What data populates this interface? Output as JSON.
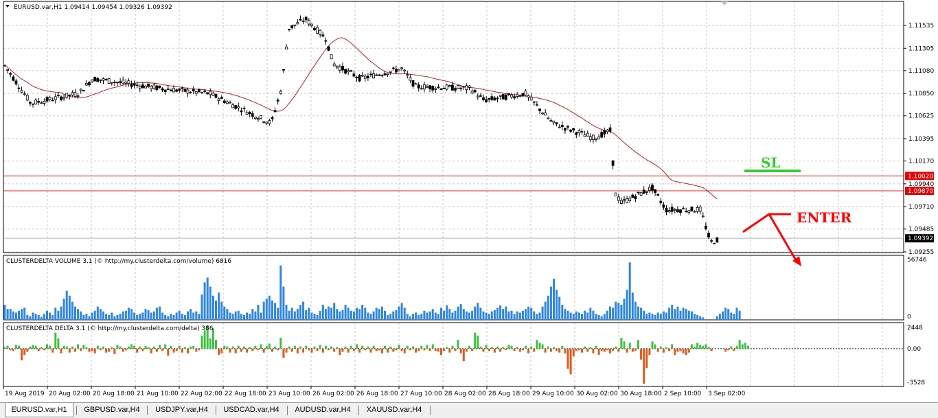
{
  "main_chart": {
    "title": "EURUSD.var,H1  1.09414 1.09454 1.09326 1.09392",
    "price_labels": [
      "1.11535",
      "1.11305",
      "1.11080",
      "1.10850",
      "1.10625",
      "1.10395",
      "1.10170",
      "1.09940",
      "1.09710",
      "1.09485",
      "1.09255"
    ],
    "tags": [
      {
        "text": "1.10020",
        "value": 1.1002,
        "color": "#e60000"
      },
      {
        "text": "1.09870",
        "value": 1.0987,
        "color": "#e60000"
      },
      {
        "text": "1.09392",
        "value": 1.09392,
        "color": "#000000"
      }
    ],
    "annotations": {
      "sl": "SL",
      "enter": "ENTER"
    },
    "colors": {
      "sl": "#33cc33",
      "enter": "#ff0000",
      "ma": "#b22222",
      "hline": "#e02020",
      "candle": "#000000"
    }
  },
  "volume_panel": {
    "title": "CLUSTERDELTA VOLUME 3.1 (© http://my.clusterdelta.com/volume) 6816",
    "labels": [
      "56746",
      "0"
    ],
    "color": "#2f86e0",
    "bars": [
      25,
      18,
      18,
      14,
      12,
      15,
      18,
      20,
      8,
      6,
      12,
      10,
      8,
      5,
      10,
      15,
      12,
      8,
      20,
      15,
      22,
      35,
      48,
      40,
      30,
      22,
      18,
      14,
      8,
      10,
      6,
      12,
      15,
      22,
      18,
      14,
      10,
      8,
      12,
      6,
      8,
      10,
      14,
      15,
      20,
      18,
      12,
      8,
      10,
      12,
      18,
      16,
      12,
      14,
      20,
      22,
      12,
      8,
      6,
      10,
      8,
      12,
      15,
      10,
      8,
      14,
      18,
      12,
      14,
      10,
      42,
      62,
      70,
      55,
      40,
      32,
      45,
      30,
      22,
      18,
      12,
      10,
      14,
      15,
      10,
      8,
      12,
      10,
      18,
      14,
      25,
      12,
      30,
      35,
      40,
      32,
      28,
      20,
      90,
      55,
      25,
      15,
      20,
      14,
      18,
      25,
      30,
      16,
      20,
      12,
      10,
      8,
      15,
      25,
      18,
      22,
      20,
      28,
      18,
      14,
      16,
      25,
      20,
      15,
      14,
      20,
      18,
      25,
      20,
      12,
      10,
      14,
      20,
      18,
      22,
      15,
      8,
      10,
      14,
      16,
      22,
      28,
      20,
      10,
      6,
      10,
      12,
      8,
      10,
      15,
      12,
      14,
      18,
      12,
      10,
      20,
      15,
      24,
      18,
      12,
      15,
      22,
      26,
      18,
      14,
      12,
      15,
      22,
      28,
      20,
      14,
      12,
      10,
      14,
      16,
      20,
      24,
      18,
      22,
      14,
      15,
      10,
      14,
      12,
      15,
      18,
      22,
      20,
      14,
      10,
      12,
      22,
      30,
      40,
      55,
      68,
      50,
      38,
      25,
      18,
      15,
      12,
      10,
      14,
      12,
      10,
      15,
      12,
      20,
      15,
      10,
      8,
      6,
      10,
      15,
      22,
      20,
      30,
      28,
      25,
      35,
      50,
      95,
      45,
      30,
      22,
      20,
      15,
      10,
      12,
      10,
      8,
      12,
      10,
      14,
      12,
      20,
      25,
      18,
      22,
      15,
      20,
      18,
      15,
      14,
      10,
      8,
      6,
      4,
      0,
      0,
      0,
      0,
      6,
      10,
      14,
      20,
      18,
      12,
      10,
      20,
      15
    ],
    "bar_max": 100
  },
  "delta_panel": {
    "title": "CLUSTERDELTA DELTA 3.1 (© http://my.clusterdelta.com/delta) 386",
    "labels": [
      "2448",
      "0.00",
      "-3528"
    ],
    "pos_color": "#3fbf3f",
    "neg_color": "#e05a20",
    "values": [
      2,
      4,
      -2,
      -3,
      5,
      4,
      -15,
      -8,
      -4,
      3,
      5,
      4,
      -3,
      2,
      -2,
      6,
      4,
      -5,
      22,
      14,
      -6,
      4,
      3,
      -5,
      3,
      -4,
      6,
      -3,
      5,
      2,
      -4,
      -3,
      -6,
      4,
      -2,
      3,
      -5,
      -4,
      2,
      -7,
      5,
      3,
      -4,
      -2,
      3,
      6,
      4,
      -5,
      3,
      -3,
      4,
      2,
      -6,
      3,
      -4,
      5,
      -3,
      6,
      -9,
      4,
      -5,
      -3,
      4,
      -5,
      2,
      -6,
      3,
      4,
      -4,
      -2,
      18,
      25,
      32,
      14,
      28,
      12,
      -8,
      -6,
      4,
      3,
      -5,
      3,
      -6,
      4,
      -4,
      3,
      -5,
      2,
      -3,
      4,
      -2,
      6,
      -5,
      4,
      7,
      -4,
      3,
      -2,
      15,
      -12,
      -5,
      3,
      -4,
      4,
      -6,
      3,
      -5,
      4,
      -2,
      -5,
      3,
      -3,
      5,
      -5,
      4,
      -2,
      3,
      -4,
      2,
      -8,
      -4,
      3,
      -5,
      4,
      -3,
      6,
      -5,
      4,
      -2,
      3,
      -5,
      4,
      -3,
      -2,
      -6,
      4,
      -5,
      3,
      -4,
      -2,
      5,
      -3,
      -6,
      4,
      -2,
      3,
      -5,
      -3,
      4,
      -2,
      5,
      -3,
      6,
      -3,
      -4,
      -8,
      -3,
      2,
      -5,
      4,
      -3,
      12,
      -6,
      -16,
      -4,
      4,
      -3,
      22,
      18,
      3,
      -4,
      5,
      -3,
      2,
      -5,
      3,
      -4,
      2,
      -2,
      5,
      4,
      -3,
      2,
      -4,
      -2,
      4,
      -6,
      3,
      -4,
      12,
      8,
      6,
      -5,
      3,
      -4,
      2,
      -3,
      -5,
      4,
      -6,
      -26,
      -33,
      -10,
      -3,
      -2,
      -5,
      3,
      -4,
      2,
      -6,
      4,
      -8,
      -3,
      -4,
      -2,
      -6,
      -3,
      3,
      -4,
      15,
      10,
      -5,
      8,
      -4,
      -3,
      12,
      -14,
      -45,
      -25,
      -8,
      10,
      6,
      -4,
      3,
      -5,
      2,
      -3,
      6,
      -8,
      -4,
      -3,
      -6,
      -8,
      -5,
      6,
      3,
      8,
      5,
      4,
      6,
      2,
      -3,
      0,
      0,
      0,
      0,
      -4,
      -2,
      3,
      -3,
      4,
      12,
      6,
      8,
      4
    ],
    "vmax": 2448,
    "vmin": -3528
  },
  "time_axis": [
    "19 Aug 2019",
    "20 Aug 02:00",
    "20 Aug 18:00",
    "21 Aug 10:00",
    "22 Aug 02:00",
    "22 Aug 18:00",
    "23 Aug 10:00",
    "26 Aug 02:00",
    "26 Aug 18:00",
    "27 Aug 10:00",
    "28 Aug 02:00",
    "28 Aug 18:00",
    "29 Aug 10:00",
    "30 Aug 02:00",
    "30 Aug 18:00",
    "2 Sep 10:00",
    "3 Sep 02:00"
  ],
  "tabs": [
    "EURUSD.var,H1",
    "GBPUSD.var,H4",
    "USDJPY.var,H4",
    "USDCAD.var,H4",
    "AUDUSD.var,H4",
    "XAUUSD.var,H4"
  ]
}
